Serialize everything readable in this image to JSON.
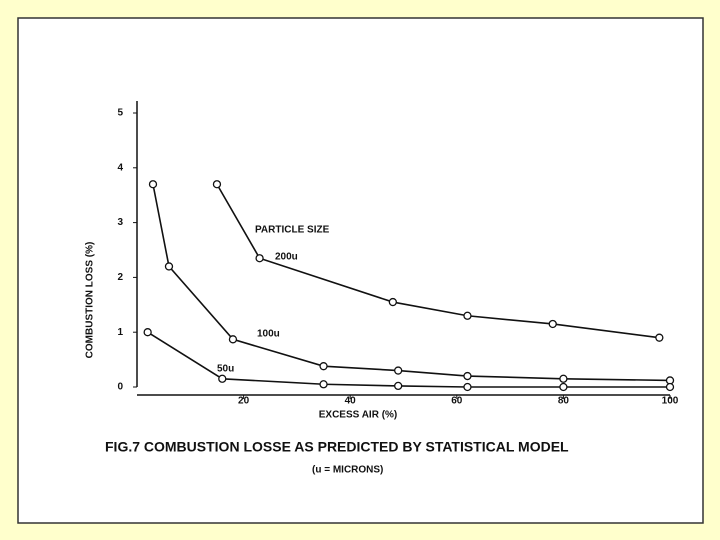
{
  "chart_data": {
    "type": "line",
    "title": "FIG.7  COMBUSTION LOSSE AS PREDICTED BY STATISTICAL MODEL",
    "subtitle": "(u = MICRONS)",
    "x_label": "EXCESS AIR (%)",
    "y_label": "COMBUSTION LOSS (%)",
    "annotation": "PARTICLE SIZE",
    "xlim": [
      0,
      100
    ],
    "ylim": [
      0,
      5
    ],
    "xticks": [
      20,
      40,
      60,
      80,
      100
    ],
    "yticks": [
      0,
      1,
      2,
      3,
      4,
      5
    ],
    "color": "#111111",
    "series": [
      {
        "name": "200u",
        "x": [
          15,
          23,
          48,
          62,
          78,
          98
        ],
        "values": [
          3.7,
          2.35,
          1.55,
          1.3,
          1.15,
          0.9
        ]
      },
      {
        "name": "100u",
        "x": [
          3,
          6,
          18,
          35,
          49,
          62,
          80,
          100
        ],
        "values": [
          3.7,
          2.2,
          0.87,
          0.38,
          0.3,
          0.2,
          0.15,
          0.12
        ]
      },
      {
        "name": "50u",
        "x": [
          2,
          16,
          35,
          49,
          62,
          80,
          100
        ],
        "values": [
          1.0,
          0.15,
          0.05,
          0.02,
          0,
          0,
          0
        ]
      }
    ]
  }
}
